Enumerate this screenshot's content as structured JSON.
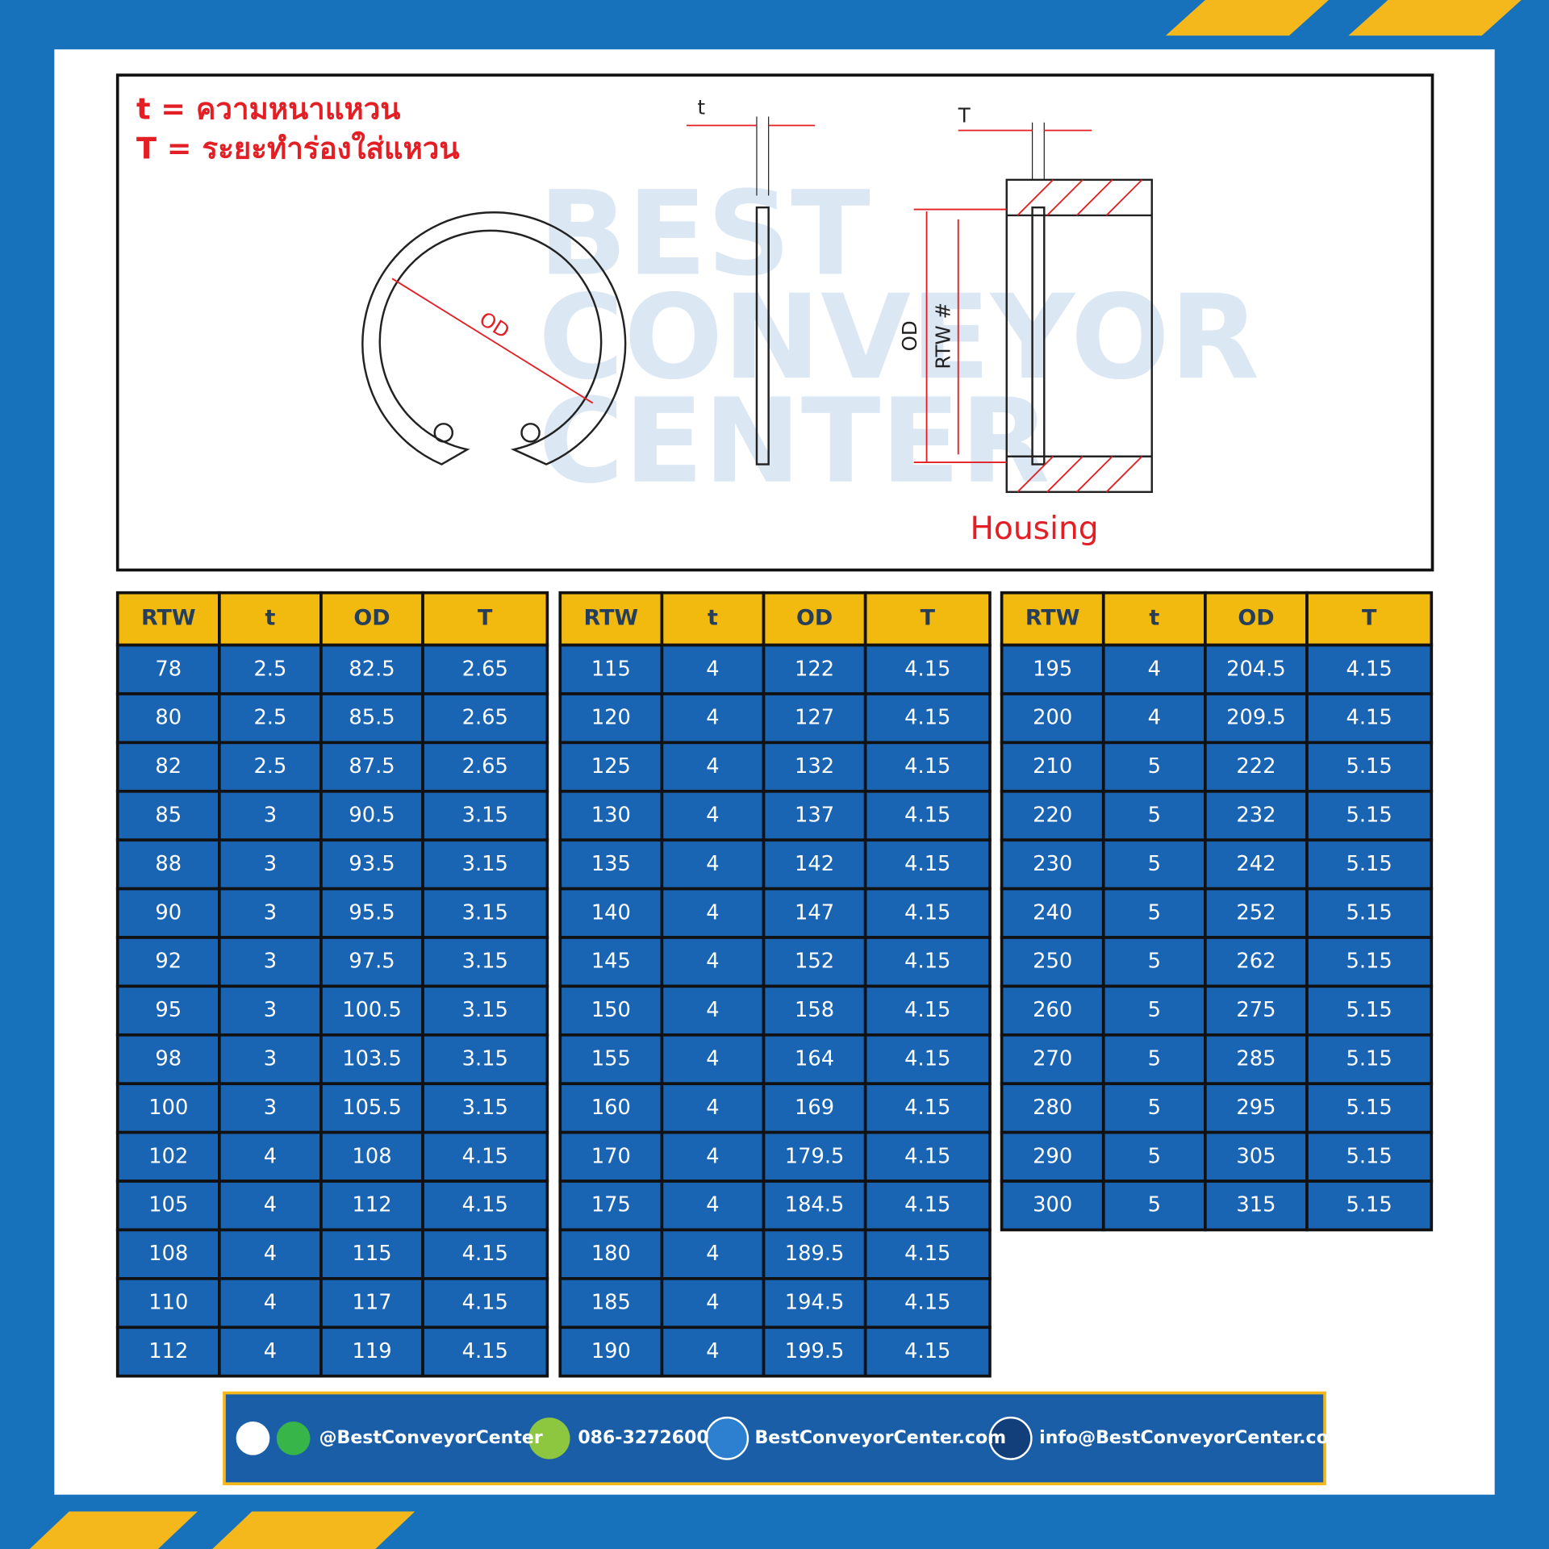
{
  "legend": [
    "t = ความหนาแหวน",
    "T = ระยะทำร่องใส่แหวน"
  ],
  "watermark": [
    "BEST",
    "CONVEYOR",
    "CENTER"
  ],
  "diagram": {
    "ring_label": "OD",
    "side_label": "t",
    "housing_top_label": "T",
    "housing_od_label": "OD",
    "housing_rtw_label": "RTW #",
    "housing_caption": "Housing"
  },
  "table_header": [
    "RTW",
    "t",
    "OD",
    "T"
  ],
  "tables": [
    {
      "rows": [
        [
          78,
          2.5,
          82.5,
          2.65
        ],
        [
          80,
          2.5,
          85.5,
          2.65
        ],
        [
          82,
          2.5,
          87.5,
          2.65
        ],
        [
          85,
          3,
          90.5,
          3.15
        ],
        [
          88,
          3,
          93.5,
          3.15
        ],
        [
          90,
          3,
          95.5,
          3.15
        ],
        [
          92,
          3,
          97.5,
          3.15
        ],
        [
          95,
          3,
          100.5,
          3.15
        ],
        [
          98,
          3,
          103.5,
          3.15
        ],
        [
          100,
          3,
          105.5,
          3.15
        ],
        [
          102,
          4,
          108,
          4.15
        ],
        [
          105,
          4,
          112,
          4.15
        ],
        [
          108,
          4,
          115,
          4.15
        ],
        [
          110,
          4,
          117,
          4.15
        ],
        [
          112,
          4,
          119,
          4.15
        ]
      ]
    },
    {
      "rows": [
        [
          115,
          4,
          122,
          4.15
        ],
        [
          120,
          4,
          127,
          4.15
        ],
        [
          125,
          4,
          132,
          4.15
        ],
        [
          130,
          4,
          137,
          4.15
        ],
        [
          135,
          4,
          142,
          4.15
        ],
        [
          140,
          4,
          147,
          4.15
        ],
        [
          145,
          4,
          152,
          4.15
        ],
        [
          150,
          4,
          158,
          4.15
        ],
        [
          155,
          4,
          164,
          4.15
        ],
        [
          160,
          4,
          169,
          4.15
        ],
        [
          170,
          4,
          179.5,
          4.15
        ],
        [
          175,
          4,
          184.5,
          4.15
        ],
        [
          180,
          4,
          189.5,
          4.15
        ],
        [
          185,
          4,
          194.5,
          4.15
        ],
        [
          190,
          4,
          199.5,
          4.15
        ]
      ]
    },
    {
      "rows": [
        [
          195,
          4,
          204.5,
          4.15
        ],
        [
          200,
          4,
          209.5,
          4.15
        ],
        [
          210,
          5,
          222,
          5.15
        ],
        [
          220,
          5,
          232,
          5.15
        ],
        [
          230,
          5,
          242,
          5.15
        ],
        [
          240,
          5,
          252,
          5.15
        ],
        [
          250,
          5,
          262,
          5.15
        ],
        [
          260,
          5,
          275,
          5.15
        ],
        [
          270,
          5,
          285,
          5.15
        ],
        [
          280,
          5,
          295,
          5.15
        ],
        [
          290,
          5,
          305,
          5.15
        ],
        [
          300,
          5,
          315,
          5.15
        ]
      ]
    }
  ],
  "footer": {
    "social": "@BestConveyorCenter",
    "phone": "086-3272600",
    "website": "BestConveyorCenter.com",
    "email": "info@BestConveyorCenter.com"
  }
}
